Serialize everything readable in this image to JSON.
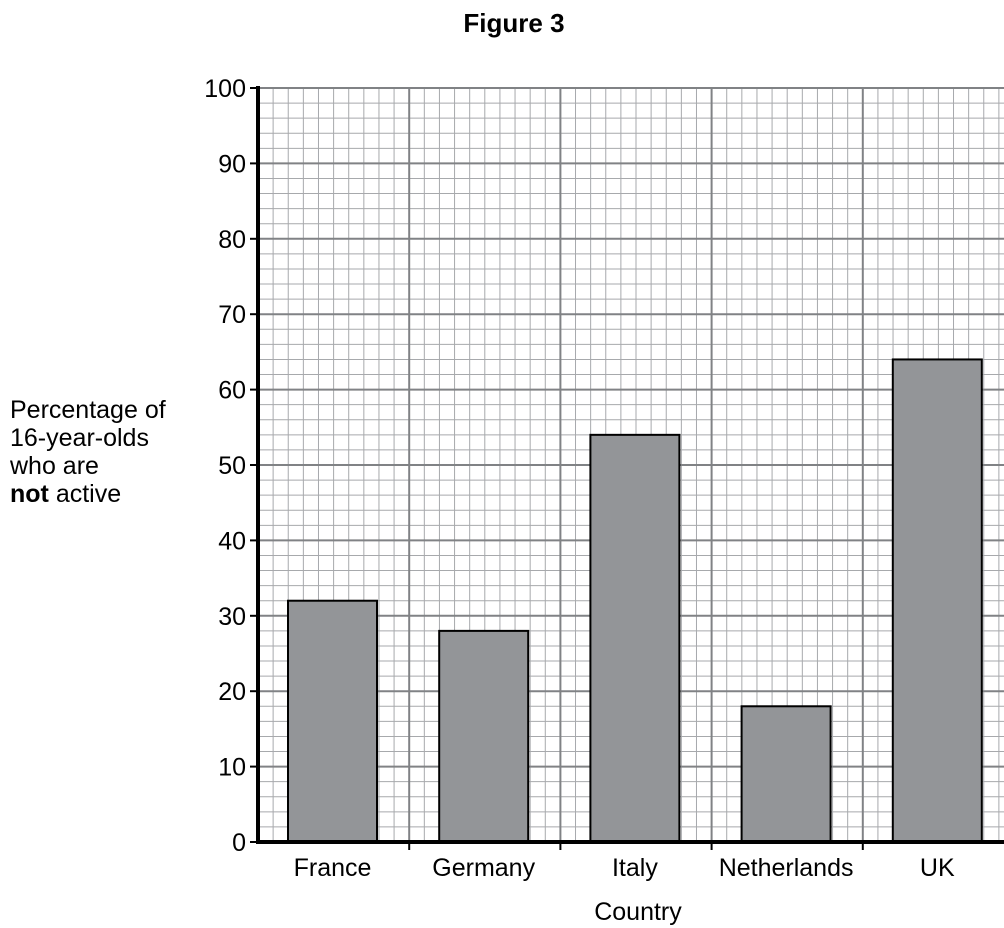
{
  "figure_title": "Figure 3",
  "chart_data": {
    "type": "bar",
    "categories": [
      "France",
      "Germany",
      "Italy",
      "Netherlands",
      "UK"
    ],
    "values": [
      32,
      28,
      54,
      18,
      64
    ],
    "title": "Figure 3",
    "xlabel": "Country",
    "ylabel_lines": [
      "Percentage of",
      "16-year-olds",
      "who are"
    ],
    "ylabel_bold_word": "not",
    "ylabel_last": "active",
    "ylim": [
      0,
      100
    ],
    "yticks": [
      0,
      10,
      20,
      30,
      40,
      50,
      60,
      70,
      80,
      90,
      100
    ],
    "grid": true,
    "bar_color": "#939598",
    "grid_color": "#a7a9ac"
  }
}
